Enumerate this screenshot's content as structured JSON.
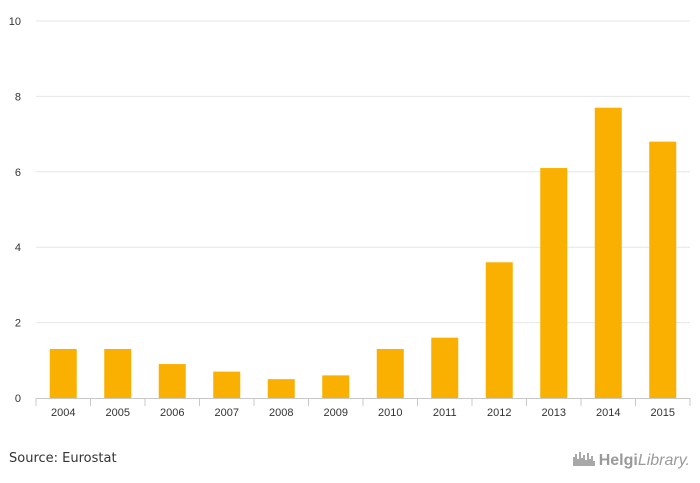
{
  "chart_data": {
    "type": "bar",
    "categories": [
      "2004",
      "2005",
      "2006",
      "2007",
      "2008",
      "2009",
      "2010",
      "2011",
      "2012",
      "2013",
      "2014",
      "2015"
    ],
    "values": [
      1.3,
      1.3,
      0.9,
      0.7,
      0.5,
      0.6,
      1.3,
      1.6,
      3.6,
      6.1,
      7.7,
      6.8
    ],
    "ylim": [
      0,
      10
    ],
    "yticks": [
      0,
      2,
      4,
      6,
      8,
      10
    ],
    "title": "",
    "xlabel": "",
    "ylabel": "",
    "grid": true,
    "bar_color": "#f9b000",
    "grid_color": "#e6e6e6"
  },
  "footer": {
    "source": "Source: Eurostat",
    "brand_bold": "Helgi",
    "brand_rest": "Library."
  },
  "icons": {
    "brand_logo": "city-skyline-icon"
  }
}
